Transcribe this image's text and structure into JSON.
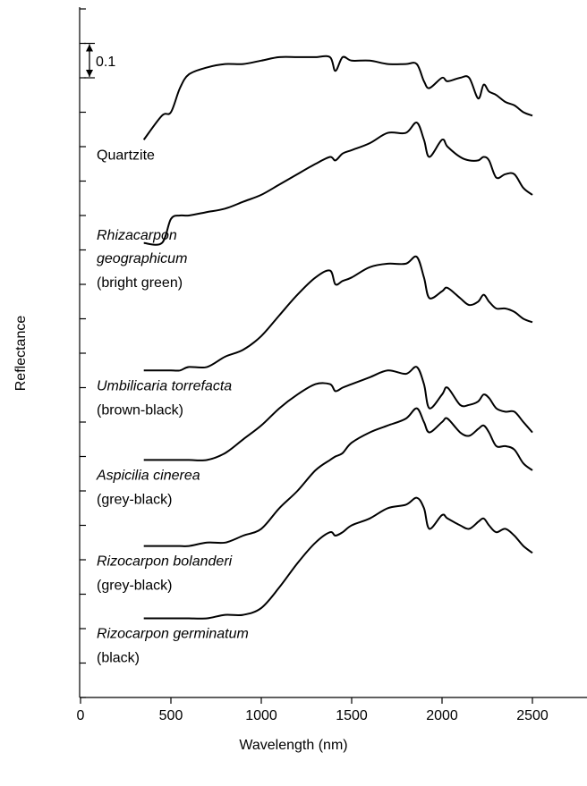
{
  "chart_data": {
    "type": "line",
    "x_label": "Wavelength (nm)",
    "y_label": "Reflectance",
    "scale_bar": 0.1,
    "xlim": [
      0,
      2800
    ],
    "xticks": [
      0,
      500,
      1000,
      1500,
      2000,
      2500
    ],
    "ylim": [
      0,
      2.0
    ],
    "yticks": [
      0,
      0.1,
      0.2,
      0.3,
      0.4,
      0.5,
      0.6,
      0.7,
      0.8,
      0.9,
      1.0,
      1.1,
      1.2,
      1.3,
      1.4,
      1.5,
      1.6,
      1.7,
      1.8,
      1.9,
      2.0
    ],
    "x": [
      350,
      450,
      500,
      550,
      600,
      700,
      800,
      900,
      1000,
      1100,
      1200,
      1300,
      1380,
      1410,
      1450,
      1500,
      1600,
      1700,
      1800,
      1860,
      1900,
      1930,
      2000,
      2030,
      2100,
      2150,
      2200,
      2230,
      2260,
      2300,
      2350,
      2400,
      2450,
      2500
    ],
    "series": [
      {
        "name": "Quartzite",
        "color": "#000000",
        "values": [
          1.62,
          1.69,
          1.7,
          1.77,
          1.81,
          1.83,
          1.84,
          1.84,
          1.85,
          1.86,
          1.86,
          1.86,
          1.86,
          1.82,
          1.86,
          1.85,
          1.85,
          1.84,
          1.84,
          1.84,
          1.79,
          1.77,
          1.8,
          1.79,
          1.8,
          1.8,
          1.74,
          1.78,
          1.76,
          1.75,
          1.73,
          1.72,
          1.7,
          1.69
        ]
      },
      {
        "name": "Rhizacarpon geographicum",
        "description": "(bright green)",
        "color": "#000000",
        "values": [
          1.32,
          1.32,
          1.39,
          1.4,
          1.4,
          1.41,
          1.42,
          1.44,
          1.46,
          1.49,
          1.52,
          1.55,
          1.57,
          1.56,
          1.58,
          1.59,
          1.61,
          1.64,
          1.64,
          1.67,
          1.62,
          1.57,
          1.62,
          1.6,
          1.57,
          1.56,
          1.56,
          1.57,
          1.56,
          1.51,
          1.52,
          1.52,
          1.48,
          1.46
        ]
      },
      {
        "name": "Umbilicaria torrefacta",
        "description": "(brown-black)",
        "color": "#000000",
        "values": [
          0.95,
          0.95,
          0.95,
          0.95,
          0.96,
          0.96,
          0.99,
          1.01,
          1.05,
          1.11,
          1.17,
          1.22,
          1.24,
          1.2,
          1.21,
          1.22,
          1.25,
          1.26,
          1.26,
          1.28,
          1.22,
          1.16,
          1.18,
          1.19,
          1.16,
          1.14,
          1.15,
          1.17,
          1.15,
          1.13,
          1.13,
          1.12,
          1.1,
          1.09
        ]
      },
      {
        "name": "Aspicilia cinerea",
        "description": "(grey-black)",
        "color": "#000000",
        "values": [
          0.69,
          0.69,
          0.69,
          0.69,
          0.69,
          0.69,
          0.71,
          0.75,
          0.79,
          0.84,
          0.88,
          0.91,
          0.91,
          0.89,
          0.9,
          0.91,
          0.93,
          0.95,
          0.94,
          0.96,
          0.91,
          0.84,
          0.88,
          0.9,
          0.85,
          0.85,
          0.86,
          0.88,
          0.87,
          0.84,
          0.83,
          0.83,
          0.8,
          0.77
        ]
      },
      {
        "name": "Rizocarpon bolanderi",
        "description": "(grey-black)",
        "color": "#000000",
        "values": [
          0.44,
          0.44,
          0.44,
          0.44,
          0.44,
          0.45,
          0.45,
          0.47,
          0.49,
          0.55,
          0.6,
          0.66,
          0.69,
          0.7,
          0.71,
          0.74,
          0.77,
          0.79,
          0.81,
          0.84,
          0.8,
          0.77,
          0.8,
          0.81,
          0.77,
          0.76,
          0.78,
          0.79,
          0.77,
          0.73,
          0.73,
          0.72,
          0.68,
          0.66
        ]
      },
      {
        "name": "Rizocarpon germinatum",
        "description": "(black)",
        "color": "#000000",
        "values": [
          0.23,
          0.23,
          0.23,
          0.23,
          0.23,
          0.23,
          0.24,
          0.24,
          0.26,
          0.32,
          0.39,
          0.45,
          0.48,
          0.47,
          0.48,
          0.5,
          0.52,
          0.55,
          0.56,
          0.58,
          0.55,
          0.49,
          0.53,
          0.52,
          0.5,
          0.49,
          0.51,
          0.52,
          0.5,
          0.48,
          0.49,
          0.47,
          0.44,
          0.42
        ]
      }
    ]
  }
}
